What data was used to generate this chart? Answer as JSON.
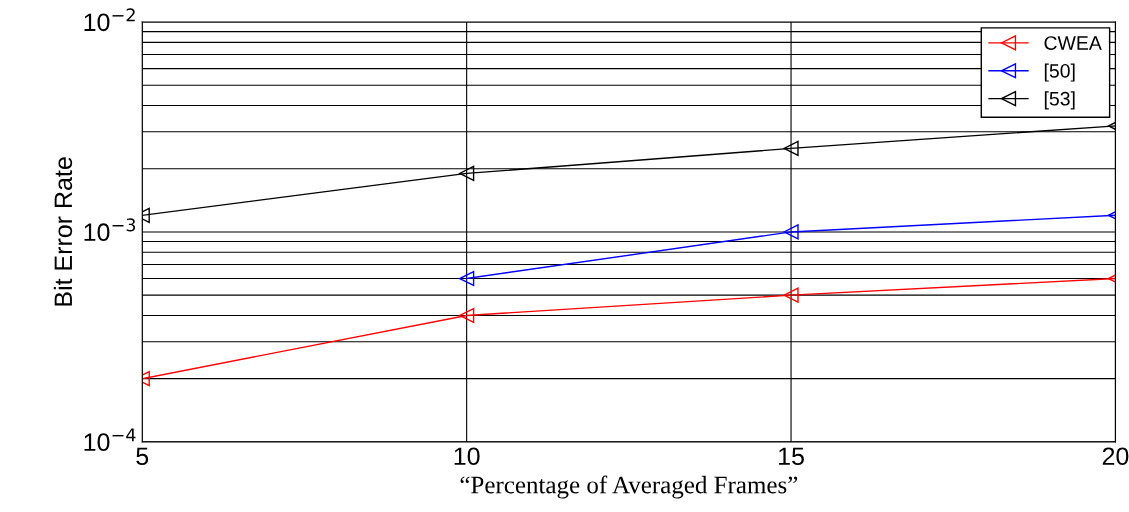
{
  "chart_data": {
    "type": "line",
    "xlabel": "“Percentage of Averaged Frames”",
    "ylabel": "Bit Error Rate",
    "x": [
      5,
      10,
      15,
      20
    ],
    "series": [
      {
        "name": "CWEA",
        "color": "#ff0000",
        "values": [
          0.0002,
          0.0004,
          0.0005,
          0.0006
        ]
      },
      {
        "name": "[50]",
        "color": "#0000ff",
        "values": [
          null,
          0.0006,
          0.001,
          0.0012
        ]
      },
      {
        "name": "[53]",
        "color": "#000000",
        "values": [
          0.0012,
          0.0019,
          0.0025,
          0.0032
        ]
      }
    ],
    "log": "y",
    "xlim": [
      5,
      20
    ],
    "ylim": [
      0.0001,
      0.01
    ],
    "xticks": [
      5,
      10,
      15,
      20
    ],
    "yticks": [
      {
        "value": 0.0001,
        "label": "10$^{−4}$"
      },
      {
        "value": 0.001,
        "label": "10$^{−3}$"
      },
      {
        "value": 0.01,
        "label": "10$^{−2}$"
      }
    ],
    "grid": true,
    "legend": "top right",
    "marker": "triangle",
    "line_style": "solid"
  }
}
